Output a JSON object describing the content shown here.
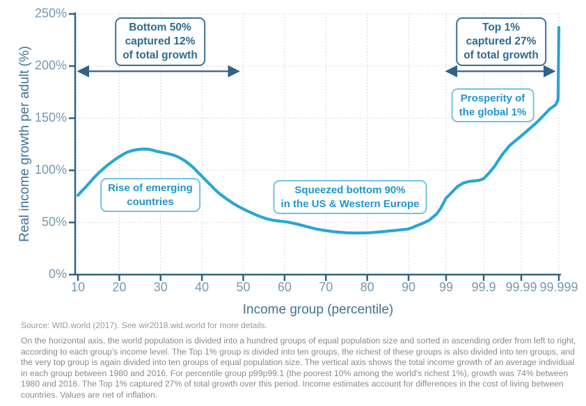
{
  "chart_data": {
    "type": "line",
    "xlabel": "Income group (percentile)",
    "ylabel": "Real income growth per adult (%)",
    "ylim": [
      0,
      250
    ],
    "grid": true,
    "x_scale": "linear from percentile 10 to 90, then logarithmic across the top decile (ticks 99, 99.9, 99.99, 99.999)",
    "x_ticks": [
      {
        "value": 10,
        "label": "10"
      },
      {
        "value": 20,
        "label": "20"
      },
      {
        "value": 30,
        "label": "30"
      },
      {
        "value": 40,
        "label": "40"
      },
      {
        "value": 50,
        "label": "50"
      },
      {
        "value": 60,
        "label": "60"
      },
      {
        "value": 70,
        "label": "70"
      },
      {
        "value": 80,
        "label": "80"
      },
      {
        "value": 90,
        "label": "90"
      },
      {
        "value": 99,
        "label": "99"
      },
      {
        "value": 99.9,
        "label": "99.9"
      },
      {
        "value": 99.99,
        "label": "99.99"
      },
      {
        "value": 99.999,
        "label": "99.999"
      }
    ],
    "y_ticks": [
      {
        "value": 0,
        "label": "0%"
      },
      {
        "value": 50,
        "label": "50%"
      },
      {
        "value": 100,
        "label": "100%"
      },
      {
        "value": 150,
        "label": "150%"
      },
      {
        "value": 200,
        "label": "200%"
      },
      {
        "value": 250,
        "label": "250%"
      }
    ],
    "series": [
      {
        "name": "Real income growth per adult 1980-2016",
        "points": [
          [
            10,
            76
          ],
          [
            11,
            80.5
          ],
          [
            12,
            84.5
          ],
          [
            13,
            89
          ],
          [
            14,
            93.5
          ],
          [
            15,
            97.5
          ],
          [
            16,
            101
          ],
          [
            17,
            104.5
          ],
          [
            18,
            107.5
          ],
          [
            19,
            110.5
          ],
          [
            20,
            113
          ],
          [
            21,
            115.5
          ],
          [
            22,
            117.5
          ],
          [
            23,
            118.8
          ],
          [
            24,
            119.6
          ],
          [
            25,
            120.2
          ],
          [
            26,
            120.4
          ],
          [
            27,
            120.3
          ],
          [
            28,
            119.4
          ],
          [
            29,
            118.3
          ],
          [
            30,
            117.5
          ],
          [
            31,
            116.7
          ],
          [
            32,
            115.8
          ],
          [
            33,
            114.7
          ],
          [
            34,
            113.3
          ],
          [
            35,
            111.3
          ],
          [
            36,
            108.8
          ],
          [
            37,
            105.8
          ],
          [
            38,
            102.3
          ],
          [
            39,
            98.3
          ],
          [
            40,
            94.3
          ],
          [
            41,
            90.3
          ],
          [
            42,
            86.3
          ],
          [
            43,
            82.3
          ],
          [
            44,
            78.5
          ],
          [
            45,
            75.5
          ],
          [
            46,
            72.5
          ],
          [
            47,
            69.8
          ],
          [
            48,
            67.3
          ],
          [
            49,
            65
          ],
          [
            50,
            63
          ],
          [
            51,
            61
          ],
          [
            52,
            59.2
          ],
          [
            53,
            57.4
          ],
          [
            54,
            55.8
          ],
          [
            55,
            54.4
          ],
          [
            56,
            53.2
          ],
          [
            57,
            52.3
          ],
          [
            58,
            51.7
          ],
          [
            59,
            51.2
          ],
          [
            60,
            50.8
          ],
          [
            61,
            50.2
          ],
          [
            62,
            49.4
          ],
          [
            63,
            48.5
          ],
          [
            64,
            47.5
          ],
          [
            65,
            46.4
          ],
          [
            66,
            45.4
          ],
          [
            67,
            44.4
          ],
          [
            68,
            43.5
          ],
          [
            69,
            42.8
          ],
          [
            70,
            42.2
          ],
          [
            71,
            41.6
          ],
          [
            72,
            41.1
          ],
          [
            73,
            40.7
          ],
          [
            74,
            40.4
          ],
          [
            75,
            40.1
          ],
          [
            76,
            40
          ],
          [
            77,
            39.9
          ],
          [
            78,
            39.9
          ],
          [
            79,
            40
          ],
          [
            80,
            40.1
          ],
          [
            81,
            40.3
          ],
          [
            82,
            40.6
          ],
          [
            83,
            40.9
          ],
          [
            84,
            41.3
          ],
          [
            85,
            41.7
          ],
          [
            86,
            42.1
          ],
          [
            87,
            42.5
          ],
          [
            88,
            42.9
          ],
          [
            89,
            43.3
          ],
          [
            90,
            43.8
          ],
          [
            92,
            45
          ],
          [
            93.5,
            46.5
          ],
          [
            95.7,
            49
          ],
          [
            97.2,
            52.3
          ],
          [
            98.2,
            58
          ],
          [
            98.6,
            63.5
          ],
          [
            99,
            73.5
          ],
          [
            99.08,
            74.8
          ],
          [
            99.15,
            75.8
          ],
          [
            99.3,
            79
          ],
          [
            99.5,
            84.5
          ],
          [
            99.65,
            87.8
          ],
          [
            99.75,
            89.3
          ],
          [
            99.87,
            90.5
          ],
          [
            99.9,
            92
          ],
          [
            99.93,
            98
          ],
          [
            99.95,
            104.5
          ],
          [
            99.96,
            110
          ],
          [
            99.97,
            116.5
          ],
          [
            99.98,
            124
          ],
          [
            99.99,
            133
          ],
          [
            99.992,
            136
          ],
          [
            99.994,
            140
          ],
          [
            99.995,
            142.5
          ],
          [
            99.996,
            145.5
          ],
          [
            99.997,
            150
          ],
          [
            99.9975,
            153
          ],
          [
            99.998,
            156.5
          ],
          [
            99.9982,
            158.5
          ],
          [
            99.9985,
            160.5
          ],
          [
            99.9988,
            163
          ],
          [
            99.99895,
            168
          ],
          [
            99.999,
            237
          ]
        ]
      }
    ],
    "span_arrows": [
      {
        "name": "bottom-50-span",
        "from_percentile": 10,
        "to_percentile": 50,
        "at_growth": 195
      },
      {
        "name": "top-1-span",
        "from_percentile": 99,
        "to_percentile": 99.999,
        "at_growth": 195
      }
    ],
    "callouts": [
      {
        "id": "bottom50",
        "style": "dark",
        "text": "Bottom 50%\ncaptured 12%\nof total growth"
      },
      {
        "id": "top1",
        "style": "dark",
        "text": "Top 1%\ncaptured 27%\nof total growth"
      },
      {
        "id": "rise",
        "style": "light",
        "text": "Rise of emerging\ncountries"
      },
      {
        "id": "squeezed",
        "style": "light",
        "text": "Squeezed bottom 90%\nin the US & Western Europe"
      },
      {
        "id": "prosperity",
        "style": "light",
        "text": "Prosperity of\nthe global 1%"
      }
    ]
  },
  "footer": {
    "source": "Source: WID.world (2017). See wir2018.wid.world for more details.",
    "note": "On the horizontal axis, the world population is divided into a hundred groups of equal population size and sorted in ascending order from left to right, according to each group's income level. The Top 1% group is divided into ten groups, the richest of these groups is also divided into ten groups, and the very top group is again divided into ten groups of equal population size. The vertical axis shows the total income growth of an average individual in each group between 1980 and 2016. For percentile group p99p99.1 (the poorest 10% among the world's richest 1%), growth was 74% between 1980 and 2016. The Top 1% captured 27% of total growth over this period. Income estimates account for differences in the cost of living between countries. Values are net of inflation."
  },
  "colors": {
    "curve": "#29A5D6",
    "axis": "#2E6282",
    "grid": "#CCCCCC",
    "arrow": "#336288",
    "tick_label": "#7698B0",
    "axis_title": "#3E7294",
    "dark_box_border": "#3A7095",
    "dark_box_text": "#2E6A92",
    "light_box_border": "#74C0E6",
    "light_box_text": "#2196CA",
    "source_text": "#999999",
    "note_text": "#8A8A8A"
  }
}
